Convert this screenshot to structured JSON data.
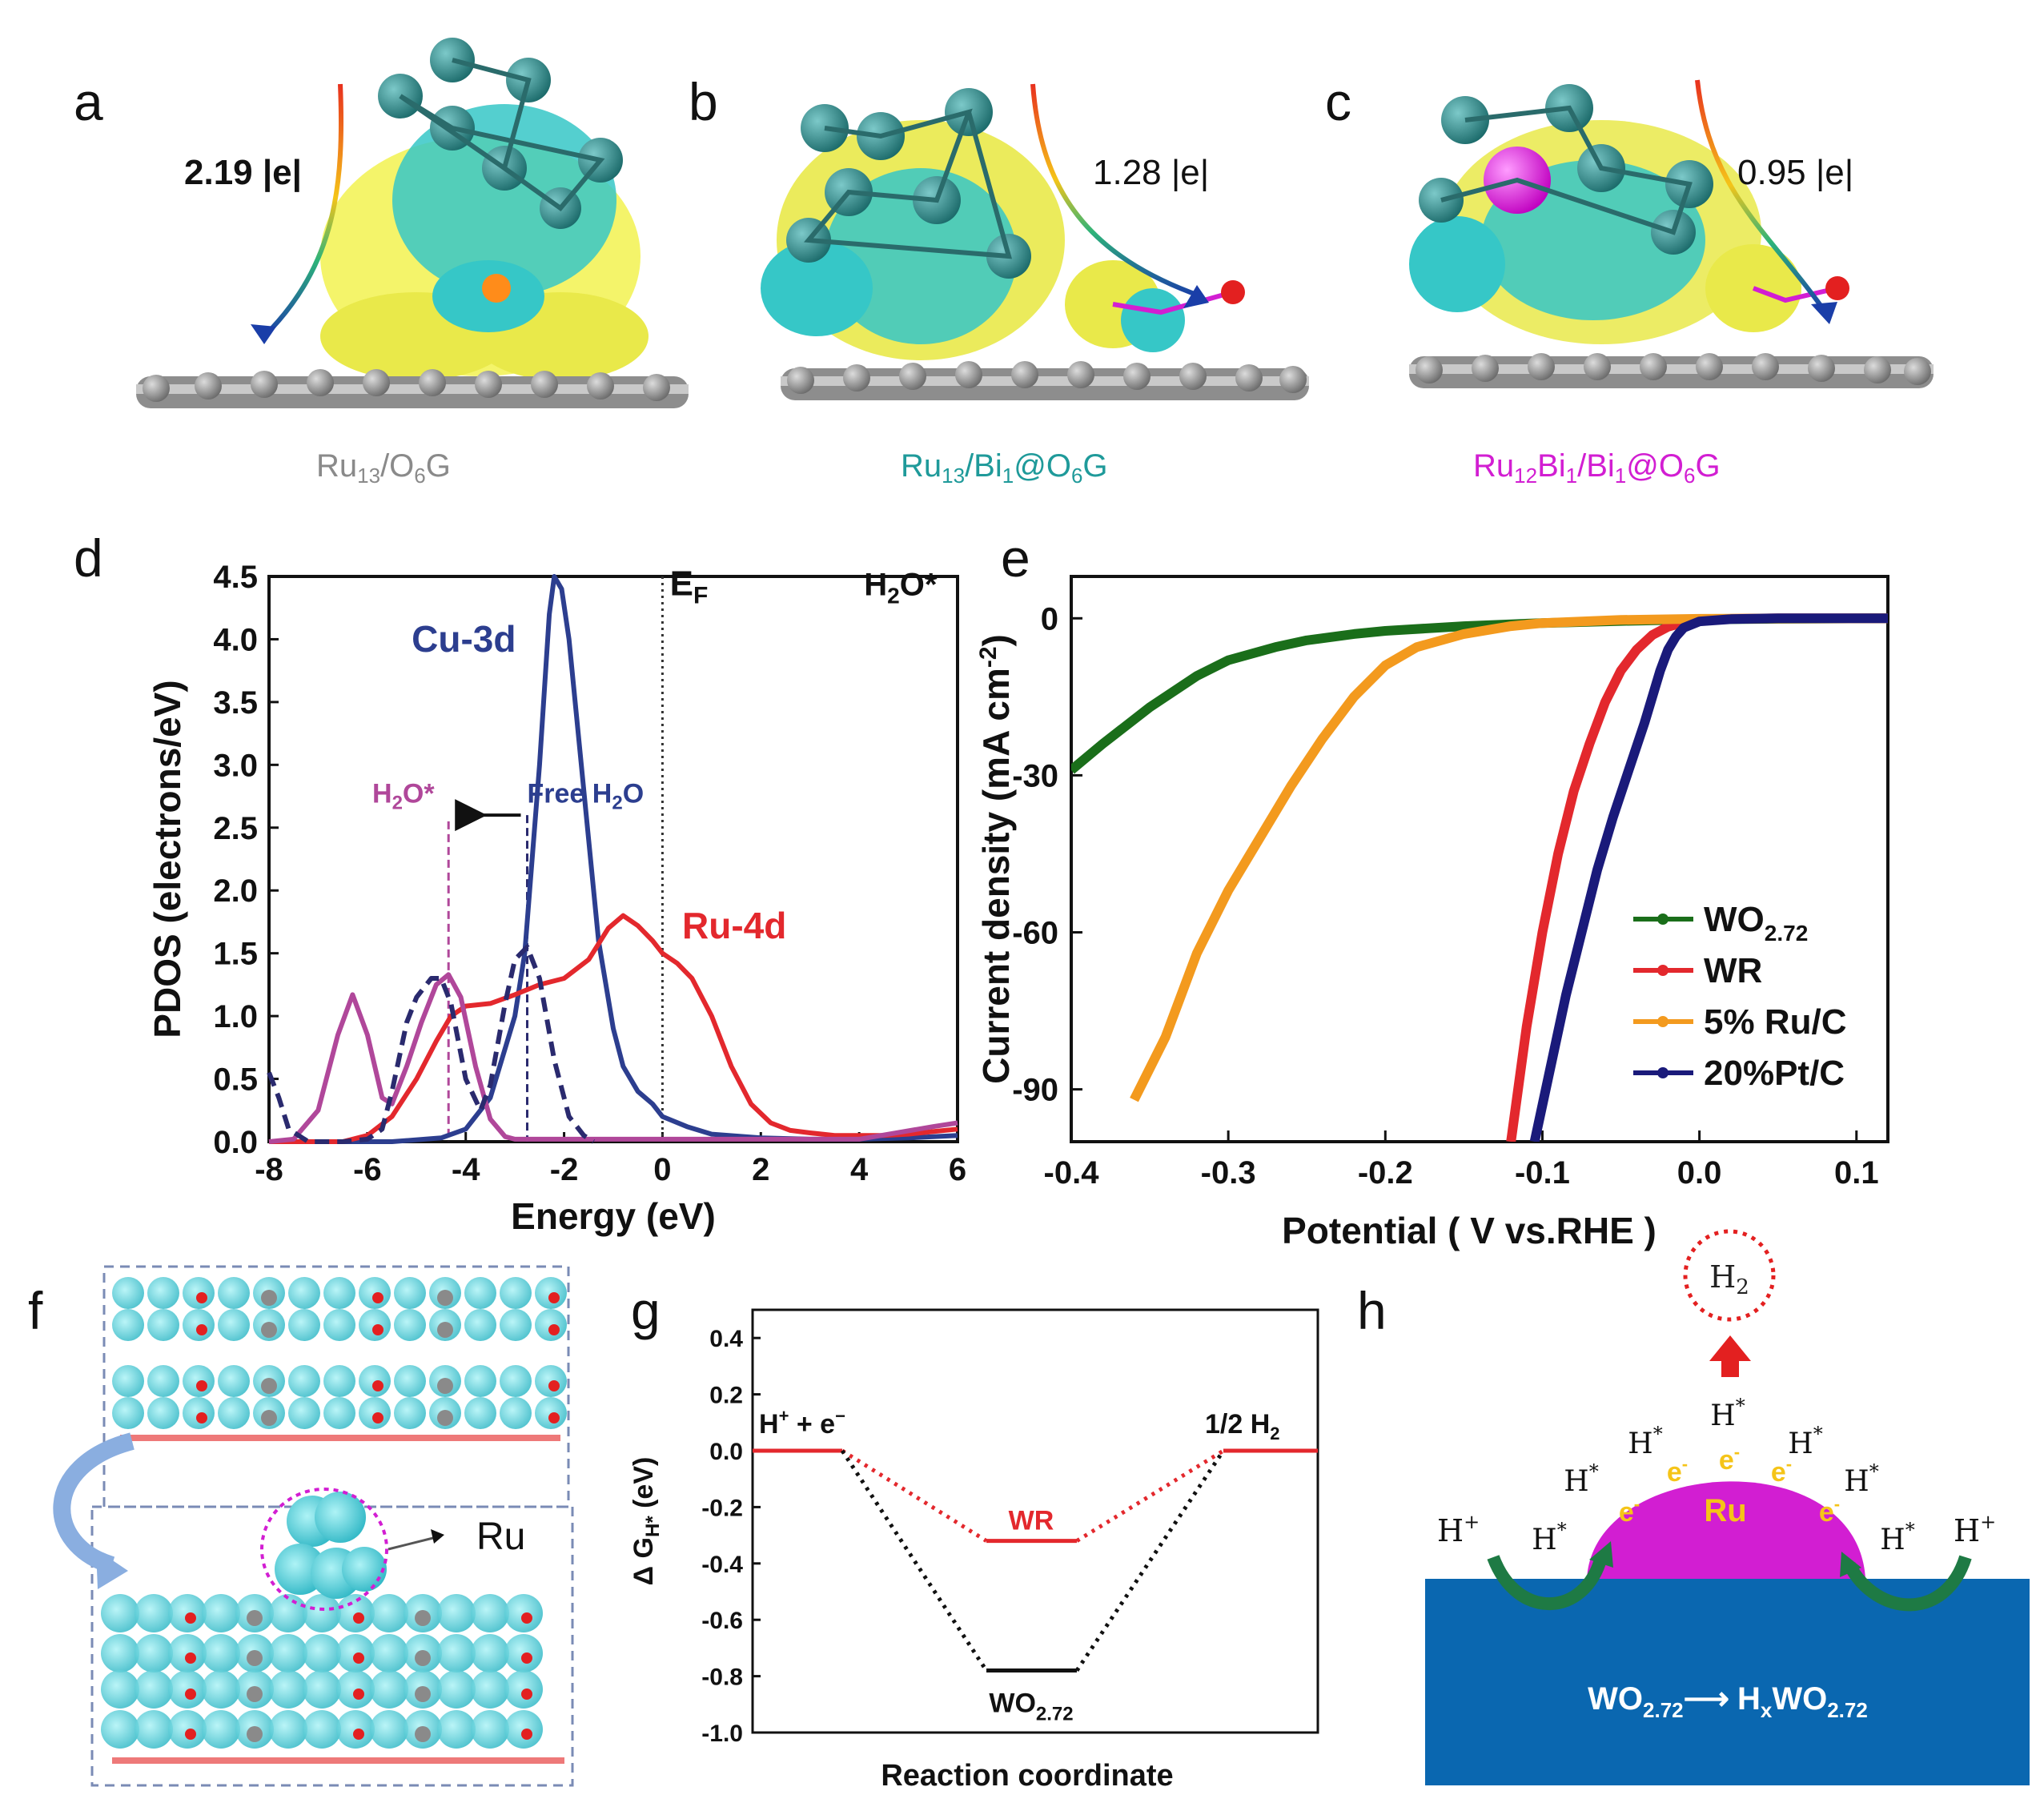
{
  "panels": {
    "a": {
      "label": "a",
      "charge": "2.19 |e|",
      "caption": {
        "base": "Ru",
        "s1": "13",
        "mid": "/O",
        "s2": "6",
        "end": "G"
      },
      "color": "#8a8a8a"
    },
    "b": {
      "label": "b",
      "charge": "1.28 |e|",
      "caption": {
        "base": "Ru",
        "s1": "13",
        "mid": "/Bi",
        "s2": "1",
        "mid2": "@O",
        "s3": "6",
        "end": "G"
      },
      "color": "#1f9a9a"
    },
    "c": {
      "label": "c",
      "charge": "0.95 |e|",
      "caption": {
        "base": "Ru",
        "s1": "12",
        "mid": "Bi",
        "s2": "1",
        "mid2": "/Bi",
        "s3": "1",
        "mid3": "@O",
        "s4": "6",
        "end": "G"
      },
      "color": "#d21ed2"
    },
    "f": {
      "label": "f",
      "ru_label": "Ru"
    },
    "h": {
      "label": "h",
      "h2": "H",
      "h2_sub": "2",
      "ru": "Ru",
      "electron": "e",
      "electron_sup": "-",
      "hstar": "H",
      "hstar_sup": "*",
      "hplus": "H",
      "hplus_sup": "+",
      "reaction": {
        "left": "WO",
        "left_sub": "2.72",
        "arrow": "⟶",
        "right": "H",
        "right_sub1": "x",
        "right_mid": "WO",
        "right_sub2": "2.72"
      }
    }
  },
  "chart_data": [
    {
      "panel": "d",
      "type": "line",
      "xlabel": "Energy (eV)",
      "ylabel": "PDOS (electrons/eV)",
      "xlim": [
        -8,
        6
      ],
      "ylim": [
        0,
        4.5
      ],
      "xticks": [
        -8,
        -6,
        -4,
        -2,
        0,
        2,
        4,
        6
      ],
      "yticks": [
        0.0,
        0.5,
        1.0,
        1.5,
        2.0,
        2.5,
        3.0,
        3.5,
        4.0,
        4.5
      ],
      "annotations": {
        "cu": "Cu-3d",
        "ru": "Ru-4d",
        "ef": "E",
        "ef_sub": "F",
        "h2o_top": "H",
        "h2o_top_sub": "2",
        "h2o_top_end": "O*",
        "h2o": "H",
        "h2o_sub": "2",
        "h2o_end": "O*",
        "free": "Free H",
        "free_sub": "2",
        "free_end": "O"
      },
      "lines": {
        "ef_x": 0,
        "h2o_x": -4.35,
        "free_x": -2.75
      },
      "series": [
        {
          "name": "Cu-3d",
          "color": "#2c3e8f",
          "x": [
            -8,
            -5.5,
            -4.5,
            -4,
            -3.5,
            -3,
            -2.8,
            -2.5,
            -2.3,
            -2.2,
            -2.05,
            -1.9,
            -1.7,
            -1.5,
            -1.3,
            -1,
            -0.8,
            -0.5,
            -0.2,
            0,
            0.5,
            1,
            2,
            3,
            4,
            5,
            6
          ],
          "y": [
            0,
            0,
            0.03,
            0.1,
            0.35,
            1.0,
            1.5,
            3.0,
            4.2,
            4.5,
            4.4,
            4.0,
            3.2,
            2.4,
            1.6,
            0.9,
            0.6,
            0.4,
            0.3,
            0.2,
            0.12,
            0.06,
            0.03,
            0.02,
            0.02,
            0.03,
            0.05
          ]
        },
        {
          "name": "Ru-4d",
          "color": "#e3282d",
          "x": [
            -8,
            -6.5,
            -6,
            -5.5,
            -5,
            -4.6,
            -4.3,
            -4,
            -3.5,
            -3,
            -2.5,
            -2,
            -1.5,
            -1.1,
            -0.8,
            -0.5,
            -0.2,
            0,
            0.3,
            0.6,
            1,
            1.4,
            1.8,
            2.2,
            2.6,
            3,
            3.5,
            4,
            4.5,
            5,
            5.5,
            6
          ],
          "y": [
            0,
            0,
            0.05,
            0.2,
            0.5,
            0.8,
            1.0,
            1.08,
            1.1,
            1.17,
            1.25,
            1.3,
            1.45,
            1.7,
            1.8,
            1.72,
            1.6,
            1.5,
            1.42,
            1.3,
            1.0,
            0.6,
            0.3,
            0.15,
            0.09,
            0.07,
            0.05,
            0.05,
            0.05,
            0.06,
            0.08,
            0.1
          ]
        },
        {
          "name": "H2O*",
          "color": "#b0479a",
          "x": [
            -8,
            -7.5,
            -7,
            -6.6,
            -6.3,
            -6.0,
            -5.7,
            -5.5,
            -5.2,
            -4.9,
            -4.6,
            -4.35,
            -4.1,
            -3.8,
            -3.5,
            -3.2,
            -3,
            -2.5,
            -2,
            0,
            2,
            4,
            5.5,
            6
          ],
          "y": [
            0,
            0.02,
            0.25,
            0.85,
            1.17,
            0.85,
            0.35,
            0.3,
            0.6,
            0.95,
            1.25,
            1.33,
            1.15,
            0.6,
            0.18,
            0.04,
            0.02,
            0.02,
            0.02,
            0.02,
            0.02,
            0.02,
            0.12,
            0.15
          ]
        },
        {
          "name": "Free H2O",
          "color": "#2a2a6e",
          "dashed": true,
          "x": [
            -8,
            -7.8,
            -7.6,
            -7.2,
            -6.5,
            -6,
            -5.7,
            -5.5,
            -5.2,
            -5,
            -4.7,
            -4.5,
            -4.3,
            -4.0,
            -3.7,
            -3.5,
            -3.2,
            -3.0,
            -2.75,
            -2.5,
            -2.2,
            -1.9,
            -1.6,
            -1.4
          ],
          "y": [
            0.55,
            0.35,
            0.1,
            0,
            0,
            0.02,
            0.1,
            0.4,
            0.95,
            1.15,
            1.3,
            1.3,
            1.1,
            0.5,
            0.25,
            0.45,
            1.1,
            1.45,
            1.55,
            1.3,
            0.65,
            0.2,
            0.05,
            0
          ]
        }
      ]
    },
    {
      "panel": "e",
      "type": "line",
      "xlabel": "Potential ( V vs.RHE )",
      "ylabel": "Current density (mA cm",
      "ylabel_sup": "-2",
      "ylabel_end": ")",
      "xlim": [
        -0.4,
        0.12
      ],
      "ylim": [
        -100,
        8
      ],
      "xticks": [
        -0.4,
        -0.3,
        -0.2,
        -0.1,
        0.0,
        0.1
      ],
      "yticks": [
        0,
        -30,
        -60,
        -90
      ],
      "legend": {
        "position": "lower-right"
      },
      "series": [
        {
          "name": "WO",
          "name_sub": "2.72",
          "color": "#1a6e1a",
          "x": [
            -0.4,
            -0.38,
            -0.35,
            -0.32,
            -0.3,
            -0.27,
            -0.25,
            -0.22,
            -0.2,
            -0.15,
            -0.1,
            -0.05,
            0,
            0.05,
            0.12
          ],
          "y": [
            -29,
            -24,
            -17,
            -11,
            -8,
            -5.5,
            -4.2,
            -3,
            -2.4,
            -1.5,
            -0.9,
            -0.5,
            -0.2,
            -0.1,
            0
          ]
        },
        {
          "name": "WR",
          "color": "#e3282d",
          "x": [
            -0.12,
            -0.11,
            -0.1,
            -0.09,
            -0.08,
            -0.07,
            -0.06,
            -0.05,
            -0.04,
            -0.03,
            -0.02,
            -0.01,
            0,
            0.02,
            0.05,
            0.12
          ],
          "y": [
            -100,
            -78,
            -60,
            -45,
            -33,
            -24,
            -16,
            -10,
            -6,
            -3.2,
            -1.6,
            -0.8,
            -0.3,
            -0.1,
            0,
            0
          ]
        },
        {
          "name": "5% Ru/C",
          "color": "#f39a1e",
          "x": [
            -0.36,
            -0.34,
            -0.32,
            -0.3,
            -0.28,
            -0.26,
            -0.24,
            -0.22,
            -0.2,
            -0.18,
            -0.15,
            -0.12,
            -0.1,
            -0.05,
            0,
            0.12
          ],
          "y": [
            -92,
            -80,
            -64,
            -52,
            -42,
            -32,
            -23,
            -15,
            -9,
            -5.5,
            -3,
            -1.5,
            -0.9,
            -0.3,
            -0.1,
            0
          ]
        },
        {
          "name": "20%Pt/C",
          "color": "#1a1a7a",
          "x": [
            -0.105,
            -0.095,
            -0.085,
            -0.075,
            -0.065,
            -0.055,
            -0.045,
            -0.035,
            -0.025,
            -0.02,
            -0.015,
            -0.01,
            0,
            0.02,
            0.05,
            0.12
          ],
          "y": [
            -100,
            -86,
            -72,
            -60,
            -48,
            -38,
            -29,
            -20,
            -10,
            -6,
            -3.5,
            -1.8,
            -0.6,
            -0.15,
            0,
            0
          ]
        }
      ]
    },
    {
      "panel": "g",
      "type": "line",
      "xlabel": "Reaction coordinate",
      "ylabel": "Δ G",
      "ylabel_sub": "H*",
      "ylabel_end": " (eV)",
      "ylim": [
        -1.0,
        0.5
      ],
      "yticks": [
        0.4,
        0.2,
        0.0,
        -0.2,
        -0.4,
        -0.6,
        -0.8,
        -1.0
      ],
      "states": {
        "start": "H",
        "start_sup": "+",
        "start_mid": " + e",
        "start_sup2": "−",
        "end": "1/2 H",
        "end_sub": "2"
      },
      "series": [
        {
          "name": "WR",
          "color": "#e3282d",
          "values": [
            0.0,
            -0.32,
            0.0
          ]
        },
        {
          "name": "WO",
          "name_sub": "2.72",
          "color": "#111111",
          "values": [
            0.0,
            -0.78,
            0.0
          ]
        }
      ]
    }
  ]
}
